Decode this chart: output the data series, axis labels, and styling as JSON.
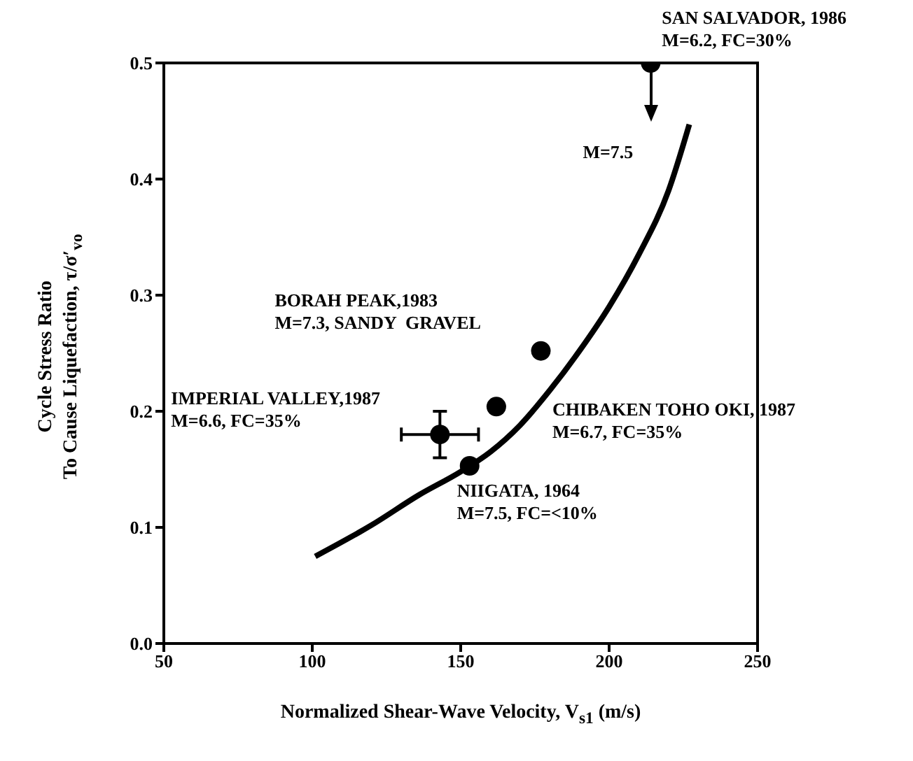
{
  "chart_data": {
    "type": "scatter",
    "xlabel": "Normalized Shear-Wave Velocity, V$_{s1}$ (m/s)",
    "ylabel": "Cycle Stress Ratio\nTo Cause Liquefaction, τ/σ′$_{vo}$",
    "xlim": [
      50,
      250
    ],
    "xticks": [
      50,
      100,
      150,
      200,
      250
    ],
    "ylim": [
      0,
      0.5
    ],
    "yticks": [
      {
        "value": 0,
        "label": "0.0"
      },
      0.1,
      0.2,
      0.3,
      0.4,
      0.5
    ],
    "grid": false,
    "series": [
      {
        "color": "#000000",
        "marker": "circle",
        "x": [
          214,
          177,
          162,
          143,
          153
        ],
        "values": [
          0.5,
          0.252,
          0.204,
          0.18,
          0.153
        ],
        "errors": [
          null,
          null,
          null,
          [
            0.16,
            0.2
          ],
          null
        ],
        "xerrors": [
          null,
          null,
          null,
          [
            130,
            156
          ],
          null
        ]
      },
      {
        "type": "line",
        "color": "#000000",
        "marker": "none",
        "line_style": "solid",
        "x": [
          101,
          120,
          136,
          150,
          160,
          170,
          180,
          190,
          200,
          210,
          220,
          227
        ],
        "values": [
          0.075,
          0.102,
          0.128,
          0.148,
          0.165,
          0.188,
          0.218,
          0.252,
          0.29,
          0.335,
          0.39,
          0.447
        ]
      }
    ],
    "annotations": [
      "SAN SALVADOR, 1986\nM=6.2, FC=30%",
      "BORAH PEAK,1983\nM=7.3, SANDY  GRAVEL",
      "CHIBAKEN TOHO OKI, 1987\nM=6.7, FC=35%",
      "IMPERIAL VALLEY,1987\nM=6.6, FC=35%",
      "NIIGATA, 1964\nM=7.5, FC=<10%",
      "M=7.5"
    ]
  }
}
